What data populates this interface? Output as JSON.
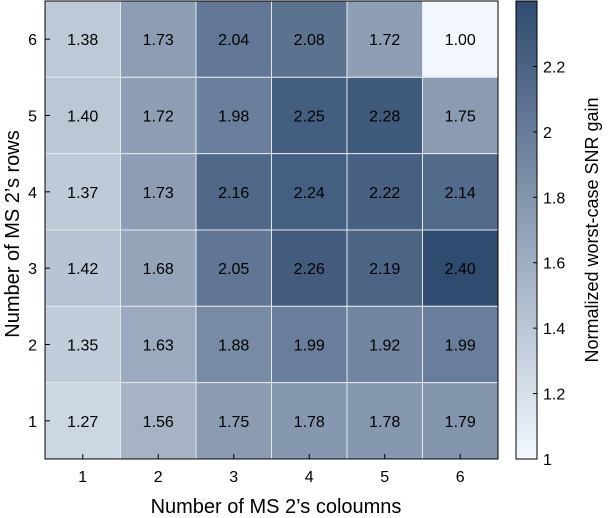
{
  "chart_data": {
    "type": "heatmap",
    "title": "",
    "xlabel": "Number of MS 2’s coloumns",
    "ylabel": "Number of MS 2’s rows",
    "colorbar_label": "Normalized worst-case SNR gain",
    "x_ticks": [
      "1",
      "2",
      "3",
      "4",
      "5",
      "6"
    ],
    "y_ticks": [
      "1",
      "2",
      "3",
      "4",
      "5",
      "6"
    ],
    "colorbar_ticks": [
      1,
      1.2,
      1.4,
      1.6,
      1.8,
      2,
      2.2
    ],
    "colorbar_tick_labels": [
      "1",
      "1.2",
      "1.4",
      "1.6",
      "1.8",
      "2",
      "2.2"
    ],
    "color_range": [
      1.0,
      2.4
    ],
    "color_low": "#f3f8fe",
    "color_high": "#2f4b70",
    "grid": true,
    "rows": [
      {
        "row": "6",
        "values": [
          "1.38",
          "1.73",
          "2.04",
          "2.08",
          "1.72",
          "1.00"
        ]
      },
      {
        "row": "5",
        "values": [
          "1.40",
          "1.72",
          "1.98",
          "2.25",
          "2.28",
          "1.75"
        ]
      },
      {
        "row": "4",
        "values": [
          "1.37",
          "1.73",
          "2.16",
          "2.24",
          "2.22",
          "2.14"
        ]
      },
      {
        "row": "3",
        "values": [
          "1.42",
          "1.68",
          "2.05",
          "2.26",
          "2.19",
          "2.40"
        ]
      },
      {
        "row": "2",
        "values": [
          "1.35",
          "1.63",
          "1.88",
          "1.99",
          "1.92",
          "1.99"
        ]
      },
      {
        "row": "1",
        "values": [
          "1.27",
          "1.56",
          "1.75",
          "1.78",
          "1.78",
          "1.79"
        ]
      }
    ]
  }
}
